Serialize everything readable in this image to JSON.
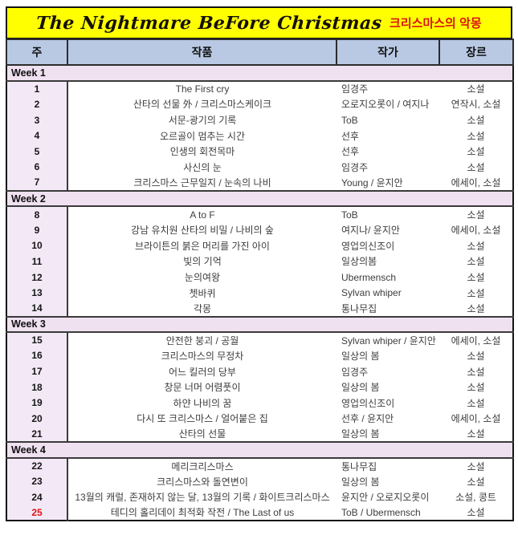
{
  "title": {
    "main": "The Nightmare BeFore Christmas",
    "subtitle": "크리스마스의 악몽"
  },
  "columns": [
    "주",
    "작품",
    "작가",
    "장르"
  ],
  "weeks": [
    {
      "label": "Week 1",
      "rows": [
        {
          "no": "1",
          "title": "The First cry",
          "author": "임경주",
          "genre": "소설"
        },
        {
          "no": "2",
          "title": "산타의 선물 外 / 크리스마스케이크",
          "author": "오로지오롯이 / 여지나",
          "genre": "연작시, 소설"
        },
        {
          "no": "3",
          "title": "서문-광기의 기록",
          "author": "ToB",
          "genre": "소설"
        },
        {
          "no": "4",
          "title": "오르골이 멈추는 시간",
          "author": "선후",
          "genre": "소설"
        },
        {
          "no": "5",
          "title": "인생의 회전목마",
          "author": "선후",
          "genre": "소설"
        },
        {
          "no": "6",
          "title": "사신의 눈",
          "author": "임경주",
          "genre": "소설"
        },
        {
          "no": "7",
          "title": "크리스마스 근무일지 / 눈속의 나비",
          "author": "Young / 윤지안",
          "genre": "에세이, 소설"
        }
      ]
    },
    {
      "label": "Week 2",
      "rows": [
        {
          "no": "8",
          "title": "A to F",
          "author": "ToB",
          "genre": "소설"
        },
        {
          "no": "9",
          "title": "강남 유치원 산타의 비밀 / 나비의 숲",
          "author": "여지나/ 윤지안",
          "genre": "에세이, 소설"
        },
        {
          "no": "10",
          "title": "브라이튼의 붉은 머리를 가진 아이",
          "author": "영업의신조이",
          "genre": "소설"
        },
        {
          "no": "11",
          "title": "빛의 기억",
          "author": "일상의봄",
          "genre": "소설"
        },
        {
          "no": "12",
          "title": "눈의여왕",
          "author": "Ubermensch",
          "genre": "소설"
        },
        {
          "no": "13",
          "title": "쳇바퀴",
          "author": "Sylvan whiper",
          "genre": "소설"
        },
        {
          "no": "14",
          "title": "각몽",
          "author": "통나무집",
          "genre": "소설"
        }
      ]
    },
    {
      "label": "Week 3",
      "rows": [
        {
          "no": "15",
          "title": "안전한 붕괴 / 공월",
          "author": "Sylvan whiper / 윤지안",
          "genre": "에세이, 소설"
        },
        {
          "no": "16",
          "title": "크리스마스의 무정차",
          "author": "일상의 봄",
          "genre": "소설"
        },
        {
          "no": "17",
          "title": "어느 킬러의 당부",
          "author": "임경주",
          "genre": "소설"
        },
        {
          "no": "18",
          "title": "창문 너머 어렴풋이",
          "author": "일상의 봄",
          "genre": "소설"
        },
        {
          "no": "19",
          "title": "하얀 나비의 꿈",
          "author": "영업의신조이",
          "genre": "소설"
        },
        {
          "no": "20",
          "title": "다시 또 크리스마스 / 얼어붙은 집",
          "author": "선후 / 윤지안",
          "genre": "에세이, 소설"
        },
        {
          "no": "21",
          "title": "산타의 선물",
          "author": "일상의 봄",
          "genre": "소설"
        }
      ]
    },
    {
      "label": "Week 4",
      "rows": [
        {
          "no": "22",
          "title": "메리크리스마스",
          "author": "통나무집",
          "genre": "소설"
        },
        {
          "no": "23",
          "title": "크리스마스와 돌연변이",
          "author": "일상의 봄",
          "genre": "소설"
        },
        {
          "no": "24",
          "title": "13월의 캐럴, 존재하지 않는 달, 13월의 기록 / 화이트크리스마스",
          "author": "윤지안 / 오로지오롯이",
          "genre": "소설, 콩트"
        },
        {
          "no": "25",
          "title": "테디의 홀리데이 최적화 작전 / The Last of us",
          "author": "ToB / Ubermensch",
          "genre": "소설",
          "highlight": true
        }
      ]
    }
  ],
  "colors": {
    "title_bg": "#ffff00",
    "subtitle_red": "#d81414",
    "header_bg": "#b9c9e4",
    "week_band_bg": "#efe1f0",
    "number_col_bg": "#f3e9f6",
    "highlight_red": "#e31414",
    "body_text": "#3d3d3d"
  }
}
